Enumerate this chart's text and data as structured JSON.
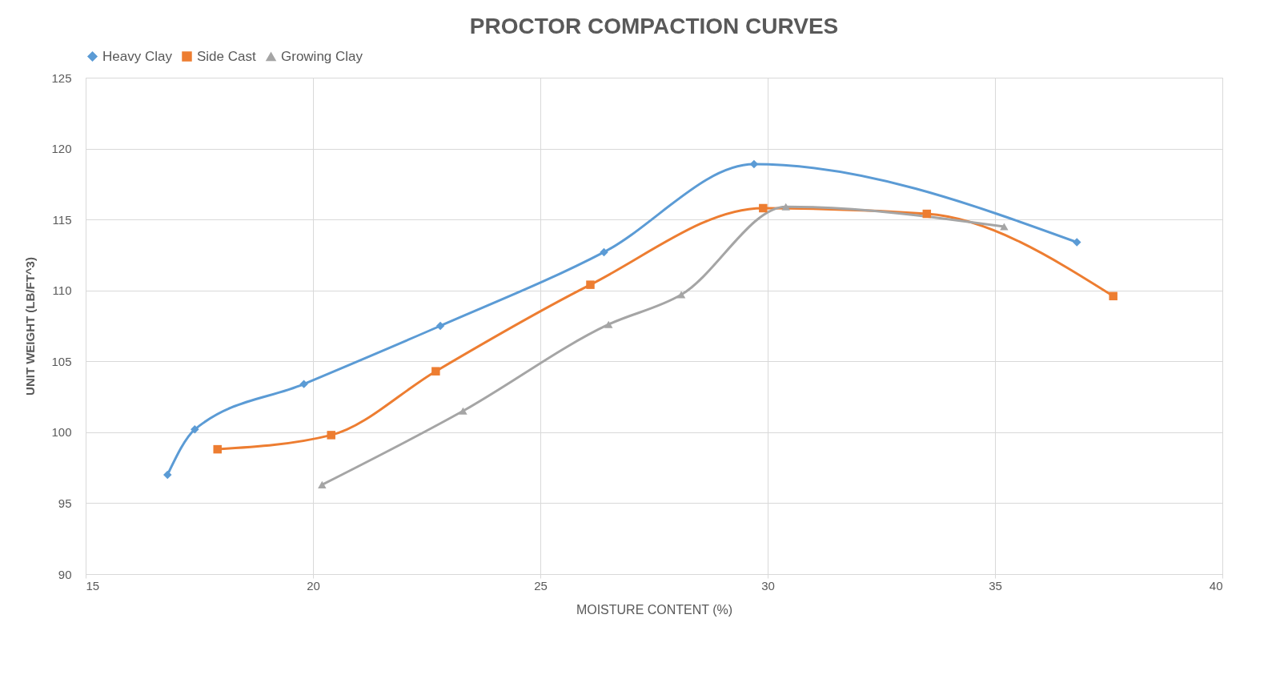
{
  "chart_data": {
    "type": "line",
    "title": "PROCTOR  COMPACTION  CURVES",
    "xlabel": "MOISTURE CONTENT (%)",
    "ylabel": "UNIT WEIGHT (LB/FT^3)",
    "xlim": [
      15,
      40
    ],
    "xticks": [
      15,
      20,
      25,
      30,
      35,
      40
    ],
    "ylim": [
      90,
      125
    ],
    "yticks": [
      90,
      95,
      100,
      105,
      110,
      115,
      120,
      125
    ],
    "grid": true,
    "legend": "top",
    "line_style": "solid",
    "series": [
      {
        "name": "Heavy Clay",
        "color": "#5b9bd5",
        "marker": "diamond",
        "x": [
          16.8,
          17.4,
          19.8,
          22.8,
          26.4,
          29.7,
          36.8
        ],
        "values": [
          97.0,
          100.2,
          103.4,
          107.5,
          112.7,
          118.9,
          113.4
        ]
      },
      {
        "name": "Side Cast",
        "color": "#ed7d31",
        "marker": "square",
        "x": [
          17.9,
          20.4,
          22.7,
          26.1,
          29.9,
          33.5,
          37.6
        ],
        "values": [
          98.8,
          99.8,
          104.3,
          110.4,
          115.8,
          115.4,
          109.6
        ]
      },
      {
        "name": "Growing Clay",
        "color": "#a5a5a5",
        "marker": "triangle",
        "x": [
          20.2,
          23.3,
          26.5,
          28.1,
          30.4,
          35.2
        ],
        "values": [
          96.3,
          101.5,
          107.6,
          109.7,
          115.9,
          114.5
        ]
      }
    ]
  }
}
